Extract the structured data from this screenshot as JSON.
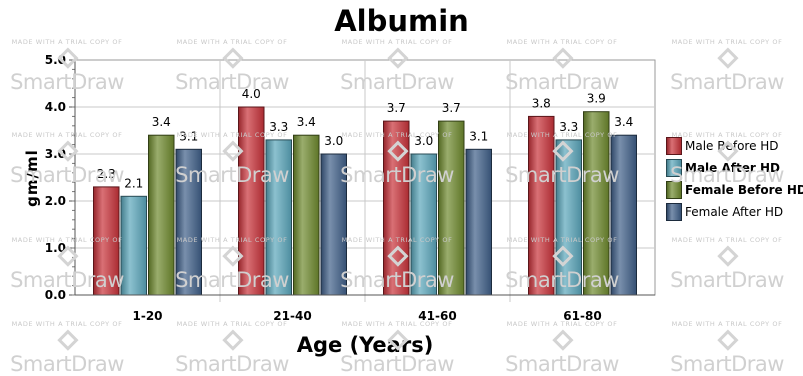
{
  "chart_data": {
    "type": "bar",
    "title": "Albumin",
    "xlabel": "Age (Years)",
    "ylabel": "gm/ml",
    "ylim": [
      0,
      5
    ],
    "yticks": [
      "0.0",
      "1.0",
      "2.0",
      "3.0",
      "4.0",
      "5.0"
    ],
    "categories": [
      "1-20",
      "21-40",
      "41-60",
      "61-80"
    ],
    "legend_position": "right",
    "grid": true,
    "series": [
      {
        "name": "Male Before HD",
        "values": [
          2.3,
          4.0,
          3.7,
          3.8
        ],
        "labels": [
          "2.3",
          "4.0",
          "3.7",
          "3.8"
        ],
        "color": "#c8323a"
      },
      {
        "name": "Male After HD",
        "values": [
          2.1,
          3.3,
          3.0,
          3.3
        ],
        "labels": [
          "2.1",
          "3.3",
          "3.0",
          "3.3"
        ],
        "color": "#5aa6bb"
      },
      {
        "name": "Female Before HD",
        "values": [
          3.4,
          3.4,
          3.7,
          3.9
        ],
        "labels": [
          "3.4",
          "3.4",
          "3.7",
          "3.9"
        ],
        "color": "#6e8a2e"
      },
      {
        "name": "Female After HD",
        "values": [
          3.1,
          3.0,
          3.1,
          3.4
        ],
        "labels": [
          "3.1",
          "3.0",
          "3.1",
          "3.4"
        ],
        "color": "#3f5f88"
      }
    ]
  },
  "watermark": {
    "line1": "MADE WITH A TRIAL COPY OF",
    "line2": "SmartDraw"
  }
}
